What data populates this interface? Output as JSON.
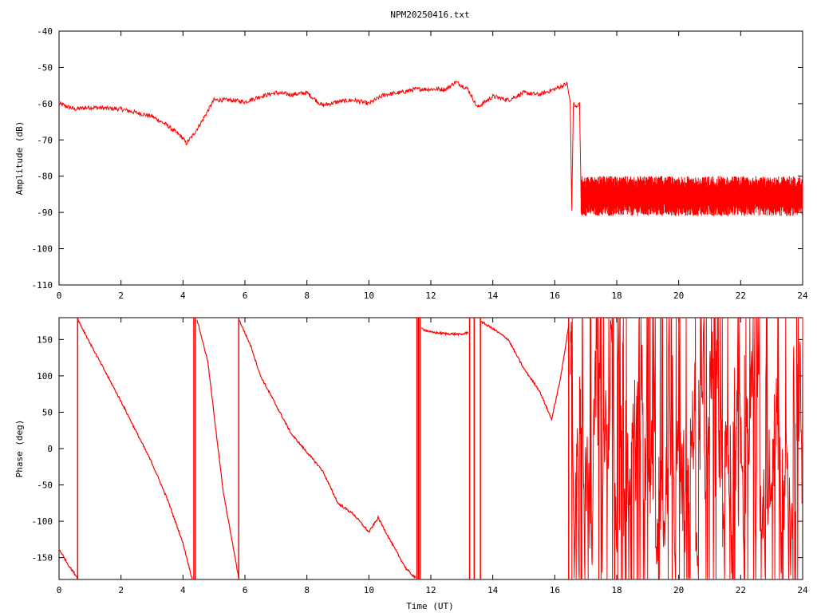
{
  "title": "NPM20250416.txt",
  "chart_data": [
    {
      "type": "line",
      "ylabel": "Amplitude (dB)",
      "xlabel": "",
      "xlim": [
        0,
        24
      ],
      "ylim": [
        -110,
        -40
      ],
      "xticks": [
        "0",
        "2",
        "4",
        "6",
        "8",
        "10",
        "12",
        "14",
        "16",
        "18",
        "20",
        "22",
        "24"
      ],
      "yticks": [
        "-40",
        "-50",
        "-60",
        "-70",
        "-80",
        "-90",
        "-100",
        "-110"
      ],
      "series": [
        {
          "color": "#ff0000",
          "x": [
            0,
            0.5,
            1,
            2,
            3,
            3.5,
            4,
            4.1,
            4.3,
            4.6,
            5,
            5.5,
            6,
            6.5,
            7,
            7.5,
            8,
            8.5,
            9,
            9.5,
            10,
            10.5,
            11,
            11.5,
            12,
            12.5,
            12.8,
            13.2,
            13.5,
            14,
            14.5,
            15,
            15.5,
            16,
            16.4,
            16.5,
            16.55,
            16.6,
            16.7,
            16.8,
            16.85
          ],
          "y": [
            -60,
            -61.5,
            -61,
            -61.5,
            -63.5,
            -66,
            -69.5,
            -71,
            -69,
            -65,
            -59,
            -59,
            -59.5,
            -58,
            -57,
            -57.5,
            -57,
            -60.5,
            -59.5,
            -59,
            -60,
            -57.5,
            -57,
            -56,
            -56,
            -56,
            -54,
            -56,
            -61,
            -58,
            -59,
            -57,
            -57.5,
            -56,
            -54.5,
            -60,
            -89,
            -60,
            -61,
            -60,
            -86
          ]
        }
      ],
      "noise_band": {
        "x_start": 16.85,
        "x_end": 24,
        "center": -86,
        "low": -91,
        "high": -80
      }
    },
    {
      "type": "line",
      "ylabel": "Phase (deg)",
      "xlabel": "Time (UT)",
      "xlim": [
        0,
        24
      ],
      "ylim": [
        -180,
        180
      ],
      "xticks": [
        "0",
        "2",
        "4",
        "6",
        "8",
        "10",
        "12",
        "14",
        "16",
        "18",
        "20",
        "22",
        "24"
      ],
      "yticks": [
        "150",
        "100",
        "50",
        "0",
        "-50",
        "-100",
        "-150"
      ],
      "series": [
        {
          "color": "#ff0000",
          "segments": [
            {
              "x": [
                0,
                0.3,
                0.6
              ],
              "y": [
                -138,
                -160,
                -178
              ]
            },
            {
              "x": [
                0.6,
                1,
                2,
                3,
                3.5,
                4,
                4.3
              ],
              "y": [
                178,
                145,
                65,
                -20,
                -70,
                -130,
                -180
              ]
            },
            {
              "x": [
                4.45,
                4.8,
                5.3,
                5.8
              ],
              "y": [
                178,
                120,
                -60,
                -178
              ]
            },
            {
              "x": [
                5.8,
                6.2,
                6.5,
                7,
                7.5,
                8,
                8.5,
                9,
                9.5,
                10,
                10.3,
                10.8,
                11.2,
                11.5
              ],
              "y": [
                178,
                140,
                100,
                60,
                20,
                -5,
                -30,
                -75,
                -90,
                -115,
                -95,
                -135,
                -165,
                -178
              ]
            },
            {
              "x": [
                11.7,
                12,
                12.5,
                13,
                13.2
              ],
              "y": [
                165,
                160,
                158,
                157,
                160
              ]
            },
            {
              "x": [
                13.6,
                14,
                14.5,
                15,
                15.5,
                15.9,
                16.2,
                16.45
              ],
              "y": [
                175,
                165,
                150,
                110,
                80,
                40,
                100,
                170
              ]
            }
          ],
          "wrap_lines_x": [
            0.6,
            4.35,
            4.4,
            5.8,
            11.55,
            11.6,
            11.65,
            13.25,
            13.4,
            13.6,
            16.45
          ]
        }
      ]
    }
  ]
}
